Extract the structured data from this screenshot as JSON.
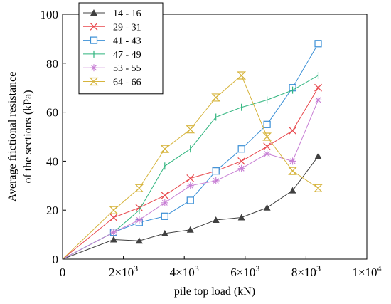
{
  "chart_data": {
    "type": "line",
    "title": "",
    "xlabel": "pile top load (kN)",
    "ylabel_lines": [
      "Average frictional resistance",
      "of the sections (kPa)"
    ],
    "xlim": [
      0,
      10000
    ],
    "ylim": [
      0,
      100
    ],
    "x_ticks": [
      {
        "value": 0,
        "base": "0",
        "exp": ""
      },
      {
        "value": 2000,
        "base": "2×10",
        "exp": "3"
      },
      {
        "value": 4000,
        "base": "4×10",
        "exp": "3"
      },
      {
        "value": 6000,
        "base": "6×10",
        "exp": "3"
      },
      {
        "value": 8000,
        "base": "8×10",
        "exp": "3"
      },
      {
        "value": 10000,
        "base": "1×10",
        "exp": "4"
      }
    ],
    "y_ticks": [
      0,
      20,
      40,
      60,
      80,
      100
    ],
    "grid": false,
    "legend_position": "top-left",
    "series": [
      {
        "name": "14 - 16",
        "color": "#404040",
        "marker": "triangle-filled",
        "x": [
          0,
          1680,
          2520,
          3360,
          4200,
          5040,
          5880,
          6720,
          7560,
          8400
        ],
        "y": [
          0,
          8,
          7.5,
          10.5,
          12,
          16,
          17,
          21,
          28,
          42
        ]
      },
      {
        "name": "29 - 31",
        "color": "#e8474c",
        "marker": "x",
        "x": [
          0,
          1680,
          2520,
          3360,
          4200,
          5040,
          5880,
          6720,
          7560,
          8400
        ],
        "y": [
          0,
          17,
          21,
          26,
          33,
          36,
          40,
          46,
          52.5,
          70
        ]
      },
      {
        "name": "41 - 43",
        "color": "#3a8fd6",
        "marker": "square-open",
        "x": [
          0,
          1680,
          2520,
          3360,
          4200,
          5040,
          5880,
          6720,
          7560,
          8400
        ],
        "y": [
          0,
          11,
          15,
          17.5,
          24,
          36,
          45,
          55,
          70,
          88
        ]
      },
      {
        "name": "47 - 49",
        "color": "#2fb57e",
        "marker": "vbar",
        "x": [
          0,
          1680,
          2520,
          3360,
          4200,
          5040,
          5880,
          6720,
          7560,
          8400
        ],
        "y": [
          0,
          11,
          20,
          38,
          45,
          58,
          62,
          65,
          69,
          75
        ]
      },
      {
        "name": "53 - 55",
        "color": "#c77ed4",
        "marker": "star",
        "x": [
          0,
          1680,
          2520,
          3360,
          4200,
          5040,
          5880,
          6720,
          7560,
          8400
        ],
        "y": [
          0,
          11,
          16,
          23,
          30,
          32,
          37,
          43,
          40,
          65
        ]
      },
      {
        "name": "64 - 66",
        "color": "#d6b43c",
        "marker": "hourglass",
        "x": [
          0,
          1680,
          2520,
          3360,
          4200,
          5040,
          5880,
          6720,
          7560,
          8400
        ],
        "y": [
          0,
          20,
          29,
          45,
          53,
          66,
          75,
          50,
          36,
          29
        ]
      }
    ]
  }
}
